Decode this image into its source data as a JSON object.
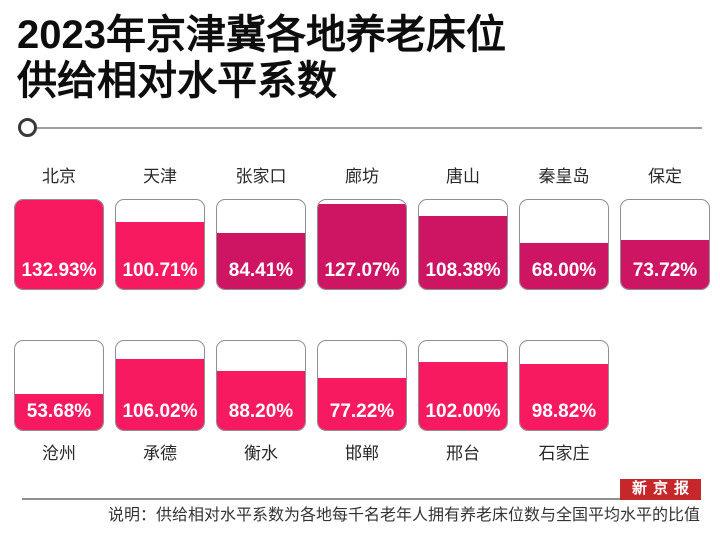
{
  "title": {
    "line1": "2023年京津冀各地养老床位",
    "line2": "供给相对水平系数"
  },
  "accent_color": "#F81A60",
  "chart_data": {
    "type": "bar",
    "title": "2023年京津冀各地养老床位供给相对水平系数",
    "unit": "%",
    "scale_max": 132.93,
    "categories": [
      "北京",
      "天津",
      "张家口",
      "廊坊",
      "唐山",
      "秦皇岛",
      "保定",
      "沧州",
      "承德",
      "衡水",
      "邯郸",
      "邢台",
      "石家庄"
    ],
    "values": [
      132.93,
      100.71,
      84.41,
      127.07,
      108.38,
      68.0,
      73.72,
      53.68,
      106.02,
      88.2,
      77.22,
      102.0,
      98.82
    ],
    "rows": [
      {
        "label_position": "top",
        "items": [
          {
            "city": "北京",
            "value": 132.93,
            "label": "132.93%",
            "color": "#F81A60"
          },
          {
            "city": "天津",
            "value": 100.71,
            "label": "100.71%",
            "color": "#F81A60"
          },
          {
            "city": "张家口",
            "value": 84.41,
            "label": "84.41%",
            "color": "#CE1563"
          },
          {
            "city": "廊坊",
            "value": 127.07,
            "label": "127.07%",
            "color": "#CE1563"
          },
          {
            "city": "唐山",
            "value": 108.38,
            "label": "108.38%",
            "color": "#CE1563"
          },
          {
            "city": "秦皇岛",
            "value": 68.0,
            "label": "68.00%",
            "color": "#CE1563"
          },
          {
            "city": "保定",
            "value": 73.72,
            "label": "73.72%",
            "color": "#CE1563"
          }
        ]
      },
      {
        "label_position": "bottom",
        "items": [
          {
            "city": "沧州",
            "value": 53.68,
            "label": "53.68%",
            "color": "#F81A60"
          },
          {
            "city": "承德",
            "value": 106.02,
            "label": "106.02%",
            "color": "#F81A60"
          },
          {
            "city": "衡水",
            "value": 88.2,
            "label": "88.20%",
            "color": "#F81A60"
          },
          {
            "city": "邯郸",
            "value": 77.22,
            "label": "77.22%",
            "color": "#F81A60"
          },
          {
            "city": "邢台",
            "value": 102.0,
            "label": "102.00%",
            "color": "#F81A60"
          },
          {
            "city": "石家庄",
            "value": 98.82,
            "label": "98.82%",
            "color": "#F81A60"
          }
        ]
      }
    ]
  },
  "footer": {
    "note": "说明：供给相对水平系数为各地每千名老年人拥有养老床位数与全国平均水平的比值",
    "logo": "新京报",
    "logo_color": "#C5272B"
  }
}
